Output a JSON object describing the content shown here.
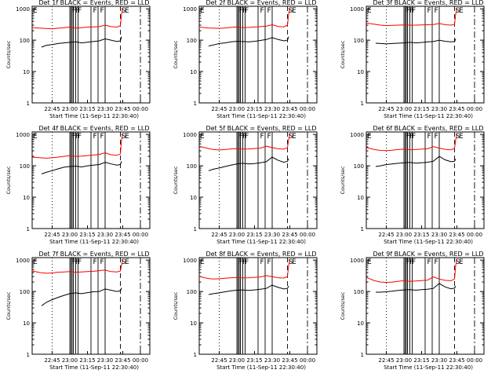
{
  "ylabel": "Counts/sec",
  "xticks": [
    "22:45",
    "23:00",
    "23:15",
    "23:30",
    "23:45",
    "00:00"
  ],
  "xtick_minutes": [
    -45,
    -30,
    -15,
    0,
    15,
    30
  ],
  "xlabel": "Start Time (11-Sep-11 22:30:40)",
  "yticks": [
    "1",
    "10",
    "100",
    "1000"
  ],
  "colors": {
    "events": "#000000",
    "lld": "#ff0000"
  },
  "flag_labels": {
    "E": "E",
    "F": "F",
    "S": "S"
  },
  "chart_data": [
    {
      "type": "line",
      "title": "Det 1f BLACK = Events, RED = LLD",
      "ylim": [
        1,
        1200
      ],
      "yscale": "log",
      "series": [
        {
          "color": "#000000",
          "x": [
            -54,
            -50,
            -45,
            -40,
            -35,
            -30,
            -25,
            -20,
            -15,
            -10,
            -5,
            0,
            5,
            10,
            13,
            14
          ],
          "values": [
            60,
            68,
            72,
            78,
            82,
            85,
            88,
            82,
            86,
            90,
            95,
            110,
            100,
            90,
            95,
            130
          ]
        },
        {
          "color": "#ff0000",
          "x": [
            -62,
            -55,
            -50,
            -45,
            -40,
            -35,
            -30,
            -25,
            -20,
            -15,
            -10,
            -5,
            0,
            5,
            10,
            13,
            14,
            15
          ],
          "values": [
            250,
            240,
            235,
            230,
            240,
            250,
            260,
            240,
            250,
            260,
            265,
            270,
            300,
            270,
            260,
            290,
            700,
            1000
          ]
        }
      ]
    },
    {
      "type": "line",
      "title": "Det 2f BLACK = Events, RED = LLD",
      "ylim": [
        1,
        1200
      ],
      "yscale": "log",
      "series": [
        {
          "color": "#000000",
          "x": [
            -54,
            -50,
            -45,
            -40,
            -35,
            -30,
            -25,
            -20,
            -15,
            -10,
            -5,
            0,
            5,
            10,
            13,
            14
          ],
          "values": [
            65,
            70,
            78,
            82,
            88,
            92,
            90,
            88,
            92,
            98,
            105,
            120,
            105,
            95,
            100,
            130
          ]
        },
        {
          "color": "#ff0000",
          "x": [
            -62,
            -55,
            -50,
            -45,
            -40,
            -35,
            -30,
            -25,
            -20,
            -15,
            -10,
            -5,
            0,
            5,
            10,
            13,
            14,
            15
          ],
          "values": [
            260,
            245,
            240,
            238,
            245,
            255,
            265,
            250,
            255,
            262,
            270,
            280,
            310,
            275,
            265,
            300,
            700,
            1000
          ]
        }
      ]
    },
    {
      "type": "line",
      "title": "Det 3f BLACK = Events, RED = LLD",
      "ylim": [
        1,
        1200
      ],
      "yscale": "log",
      "series": [
        {
          "color": "#000000",
          "x": [
            -54,
            -50,
            -45,
            -40,
            -35,
            -30,
            -25,
            -20,
            -15,
            -10,
            -5,
            0,
            5,
            10,
            13,
            14
          ],
          "values": [
            80,
            78,
            76,
            78,
            80,
            82,
            85,
            82,
            84,
            88,
            90,
            100,
            92,
            88,
            90,
            110
          ]
        },
        {
          "color": "#ff0000",
          "x": [
            -62,
            -55,
            -50,
            -45,
            -40,
            -35,
            -30,
            -25,
            -20,
            -15,
            -10,
            -5,
            0,
            5,
            10,
            13,
            14,
            15
          ],
          "values": [
            350,
            320,
            300,
            290,
            295,
            300,
            305,
            300,
            300,
            305,
            310,
            315,
            340,
            310,
            300,
            320,
            700,
            1000
          ]
        }
      ]
    },
    {
      "type": "line",
      "title": "Det 4f BLACK = Events, RED = LLD",
      "ylim": [
        1,
        1200
      ],
      "yscale": "log",
      "series": [
        {
          "color": "#000000",
          "x": [
            -54,
            -50,
            -45,
            -40,
            -35,
            -30,
            -25,
            -20,
            -15,
            -10,
            -5,
            0,
            5,
            10,
            13,
            14
          ],
          "values": [
            55,
            62,
            70,
            80,
            90,
            95,
            98,
            92,
            100,
            105,
            110,
            130,
            115,
            105,
            110,
            140
          ]
        },
        {
          "color": "#ff0000",
          "x": [
            -62,
            -55,
            -50,
            -45,
            -40,
            -35,
            -30,
            -25,
            -20,
            -15,
            -10,
            -5,
            0,
            5,
            10,
            13,
            14,
            15
          ],
          "values": [
            190,
            180,
            175,
            180,
            190,
            200,
            210,
            200,
            205,
            212,
            220,
            230,
            260,
            225,
            215,
            240,
            700,
            1000
          ]
        }
      ]
    },
    {
      "type": "line",
      "title": "Det 5f BLACK = Events, RED = LLD",
      "ylim": [
        1,
        1200
      ],
      "yscale": "log",
      "series": [
        {
          "color": "#000000",
          "x": [
            -54,
            -50,
            -45,
            -40,
            -35,
            -30,
            -25,
            -20,
            -15,
            -10,
            -5,
            0,
            5,
            10,
            13,
            14
          ],
          "values": [
            70,
            78,
            85,
            95,
            105,
            115,
            120,
            115,
            118,
            125,
            135,
            190,
            150,
            130,
            140,
            170
          ]
        },
        {
          "color": "#ff0000",
          "x": [
            -62,
            -55,
            -50,
            -45,
            -40,
            -35,
            -30,
            -25,
            -20,
            -15,
            -10,
            -5,
            0,
            5,
            10,
            13,
            14,
            15
          ],
          "values": [
            420,
            360,
            330,
            320,
            330,
            345,
            355,
            340,
            345,
            355,
            365,
            420,
            380,
            350,
            340,
            380,
            700,
            1000
          ]
        }
      ]
    },
    {
      "type": "line",
      "title": "Det 6f BLACK = Events, RED = LLD",
      "ylim": [
        1,
        1200
      ],
      "yscale": "log",
      "series": [
        {
          "color": "#000000",
          "x": [
            -54,
            -50,
            -45,
            -40,
            -35,
            -30,
            -25,
            -20,
            -15,
            -10,
            -5,
            0,
            5,
            10,
            13,
            14
          ],
          "values": [
            95,
            100,
            110,
            115,
            120,
            125,
            128,
            122,
            125,
            130,
            140,
            200,
            155,
            135,
            140,
            165
          ]
        },
        {
          "color": "#ff0000",
          "x": [
            -62,
            -55,
            -50,
            -45,
            -40,
            -35,
            -30,
            -25,
            -20,
            -15,
            -10,
            -5,
            0,
            5,
            10,
            13,
            14,
            15
          ],
          "values": [
            380,
            330,
            310,
            305,
            315,
            330,
            340,
            325,
            330,
            340,
            350,
            410,
            365,
            335,
            325,
            360,
            700,
            1000
          ]
        }
      ]
    },
    {
      "type": "line",
      "title": "Det 7f BLACK = Events, RED = LLD",
      "ylim": [
        1,
        1200
      ],
      "yscale": "log",
      "series": [
        {
          "color": "#000000",
          "x": [
            -54,
            -50,
            -45,
            -40,
            -35,
            -30,
            -25,
            -20,
            -15,
            -10,
            -5,
            0,
            5,
            10,
            13,
            14
          ],
          "values": [
            35,
            45,
            55,
            65,
            75,
            85,
            90,
            85,
            92,
            98,
            100,
            120,
            110,
            100,
            105,
            130
          ]
        },
        {
          "color": "#ff0000",
          "x": [
            -62,
            -55,
            -50,
            -45,
            -40,
            -35,
            -30,
            -25,
            -20,
            -15,
            -10,
            -5,
            0,
            5,
            10,
            13,
            14,
            15
          ],
          "values": [
            450,
            400,
            380,
            390,
            410,
            420,
            430,
            410,
            420,
            430,
            440,
            460,
            480,
            430,
            420,
            450,
            700,
            1000
          ]
        }
      ]
    },
    {
      "type": "line",
      "title": "Det 8f BLACK = Events, RED = LLD",
      "ylim": [
        1,
        1200
      ],
      "yscale": "log",
      "series": [
        {
          "color": "#000000",
          "x": [
            -54,
            -50,
            -45,
            -40,
            -35,
            -30,
            -25,
            -20,
            -15,
            -10,
            -5,
            0,
            5,
            10,
            13,
            14
          ],
          "values": [
            80,
            85,
            90,
            98,
            105,
            110,
            112,
            108,
            112,
            118,
            125,
            160,
            135,
            120,
            125,
            150
          ]
        },
        {
          "color": "#ff0000",
          "x": [
            -62,
            -55,
            -50,
            -45,
            -40,
            -35,
            -30,
            -25,
            -20,
            -15,
            -10,
            -5,
            0,
            5,
            10,
            13,
            14,
            15
          ],
          "values": [
            300,
            260,
            250,
            255,
            265,
            275,
            280,
            270,
            275,
            282,
            290,
            320,
            295,
            275,
            268,
            300,
            700,
            1000
          ]
        }
      ]
    },
    {
      "type": "line",
      "title": "Det 9f BLACK = Events, RED = LLD",
      "ylim": [
        1,
        1200
      ],
      "yscale": "log",
      "series": [
        {
          "color": "#000000",
          "x": [
            -54,
            -50,
            -45,
            -40,
            -35,
            -30,
            -25,
            -20,
            -15,
            -10,
            -5,
            0,
            5,
            10,
            13,
            14
          ],
          "values": [
            95,
            95,
            98,
            102,
            108,
            112,
            115,
            110,
            114,
            118,
            125,
            180,
            140,
            122,
            128,
            150
          ]
        },
        {
          "color": "#ff0000",
          "x": [
            -62,
            -55,
            -50,
            -45,
            -40,
            -35,
            -30,
            -25,
            -20,
            -15,
            -10,
            -5,
            0,
            5,
            10,
            13,
            14,
            15
          ],
          "values": [
            280,
            220,
            200,
            195,
            200,
            210,
            220,
            210,
            215,
            222,
            230,
            290,
            250,
            225,
            220,
            250,
            700,
            1000
          ]
        }
      ]
    }
  ]
}
